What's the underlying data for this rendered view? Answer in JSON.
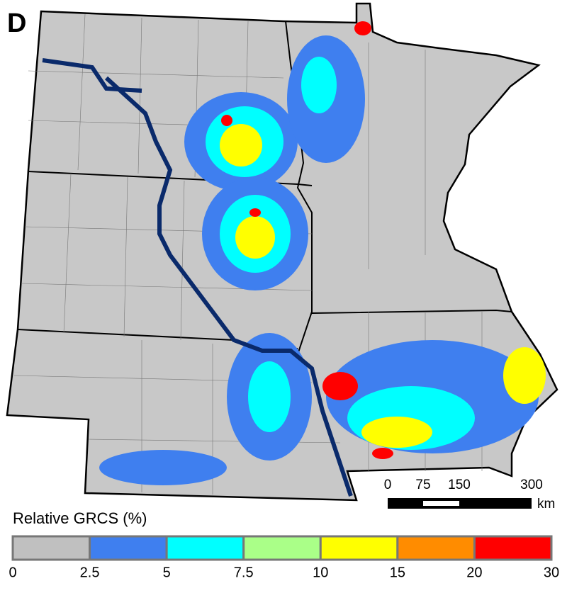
{
  "panel_label": "D",
  "scale_bar": {
    "ticks": [
      "0",
      "75",
      "150",
      "300"
    ],
    "unit": "km"
  },
  "legend": {
    "title": "Relative GRCS (%)",
    "colors": [
      "#c0c0c0",
      "#3f7fef",
      "#00ffff",
      "#aaff88",
      "#ffff00",
      "#ff8c00",
      "#ff0000"
    ],
    "ticks": [
      "0",
      "2.5",
      "5",
      "7.5",
      "10",
      "15",
      "20",
      "30"
    ]
  }
}
